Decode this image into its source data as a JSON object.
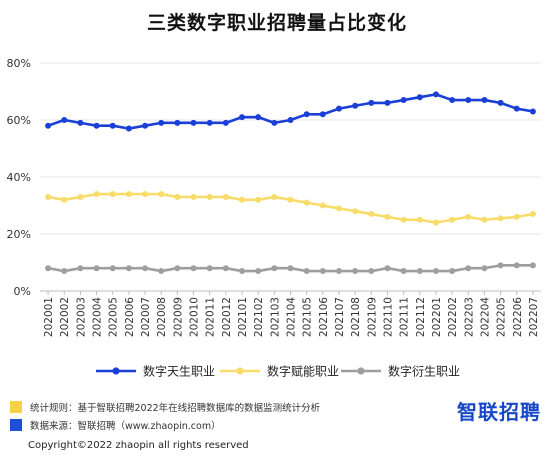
{
  "chart_data": {
    "type": "line",
    "title": "三类数字职业招聘量占比变化",
    "xlabel": "",
    "ylabel": "",
    "ylim": [
      0,
      80
    ],
    "yticks": [
      "0%",
      "20%",
      "40%",
      "60%",
      "80%"
    ],
    "grid": true,
    "legend_position": "bottom",
    "x": [
      "202001",
      "202002",
      "202003",
      "202004",
      "202005",
      "202006",
      "202007",
      "202008",
      "202009",
      "202010",
      "202011",
      "202012",
      "202101",
      "202102",
      "202103",
      "202104",
      "202105",
      "202106",
      "202107",
      "202108",
      "202109",
      "202110",
      "202111",
      "202112",
      "202201",
      "202202",
      "202203",
      "202204",
      "202205",
      "202206",
      "202207"
    ],
    "series": [
      {
        "name": "数字天生职业",
        "color": "#1a3fd6",
        "values": [
          58,
          60,
          59,
          58,
          58,
          57,
          58,
          59,
          59,
          59,
          59,
          59,
          61,
          61,
          59,
          60,
          62,
          62,
          64,
          65,
          66,
          66,
          67,
          68,
          69,
          67,
          67,
          67,
          66,
          64,
          63
        ]
      },
      {
        "name": "数字赋能职业",
        "color": "#f7dc6b",
        "values": [
          33,
          32,
          33,
          34,
          34,
          34,
          34,
          34,
          33,
          33,
          33,
          33,
          32,
          32,
          33,
          32,
          31,
          30,
          29,
          28,
          27,
          26,
          25,
          25,
          24,
          25,
          26,
          25,
          25.5,
          26,
          27
        ]
      },
      {
        "name": "数字衍生职业",
        "color": "#9e9e9e",
        "values": [
          8,
          7,
          8,
          8,
          8,
          8,
          8,
          7,
          8,
          8,
          8,
          8,
          7,
          7,
          8,
          8,
          7,
          7,
          7,
          7,
          7,
          8,
          7,
          7,
          7,
          7,
          8,
          8,
          9,
          9,
          9
        ]
      }
    ]
  },
  "footnotes": [
    {
      "text": "统计规则：基于智联招聘2022年在线招聘数据库的数据监测统计分析",
      "color": "#f7d046"
    },
    {
      "text": "数据来源：智联招聘（www.zhaopin.com）",
      "color": "#1f4fd8"
    }
  ],
  "brand": {
    "logo_text": "智联招聘",
    "color": "#1848c6"
  },
  "copyright": "Copyright©2022 zhaopin all rights reserved"
}
